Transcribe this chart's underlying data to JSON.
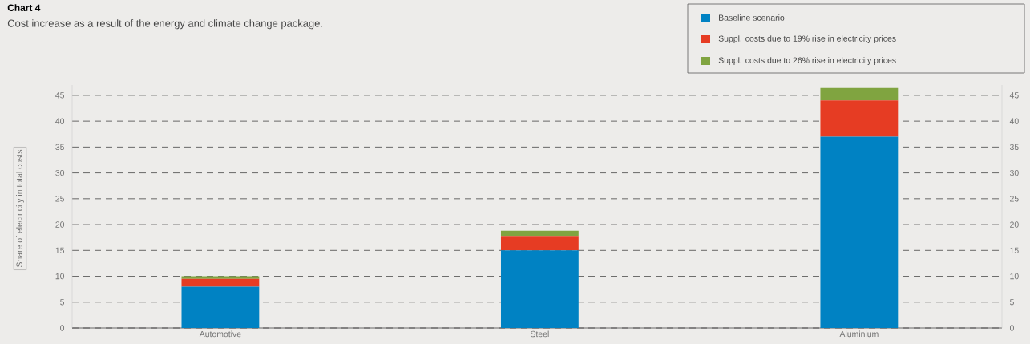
{
  "chart_data": {
    "type": "bar",
    "stacked": true,
    "title": "Chart 4",
    "subtitle": "Cost increase as a result of the energy and climate change package.",
    "ylabel": "Share of electricity in total costs",
    "categories": [
      "Automotive",
      "Steel",
      "Aluminium"
    ],
    "series": [
      {
        "name": "Baseline scenario",
        "color": "#0082c3",
        "values": [
          8,
          15,
          37
        ]
      },
      {
        "name": "Suppl. costs due to 19% rise in electricity prices",
        "color": "#e63c23",
        "values": [
          1.5,
          2.8,
          7
        ]
      },
      {
        "name": "Suppl. costs due to 26% rise in electricity prices",
        "color": "#80a440",
        "values": [
          0.5,
          1.0,
          2.4
        ]
      }
    ],
    "ylim": [
      0,
      47
    ],
    "yticks": [
      0,
      5,
      10,
      15,
      20,
      25,
      30,
      35,
      40,
      45
    ],
    "y2lim": [
      0,
      47
    ],
    "y2ticks": [
      0,
      5,
      10,
      15,
      20,
      25,
      30,
      35,
      40,
      45
    ],
    "grid": "y",
    "legend": "top right"
  }
}
